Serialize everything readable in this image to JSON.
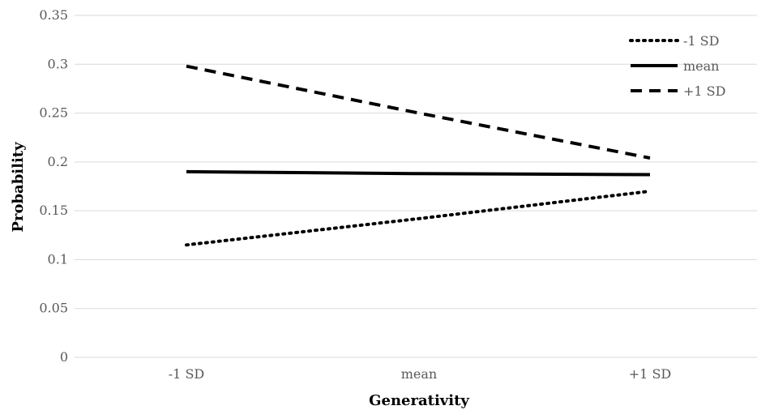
{
  "chart_data": {
    "type": "line",
    "title": "",
    "xlabel": "Generativity",
    "ylabel": "Probability",
    "categories": [
      "-1 SD",
      "mean",
      "+1 SD"
    ],
    "ylim": [
      0,
      0.35
    ],
    "yticks": [
      0,
      0.05,
      0.1,
      0.15,
      0.2,
      0.25,
      0.3,
      0.35
    ],
    "ytick_labels": [
      "0",
      "0.05",
      "0.1",
      "0.15",
      "0.2",
      "0.25",
      "0.3",
      "0.35"
    ],
    "grid": true,
    "legend_position": "top-right",
    "series": [
      {
        "name": "-1 SD",
        "values": [
          0.115,
          0.142,
          0.17
        ],
        "line_style": "dotted",
        "color": "#000000"
      },
      {
        "name": "mean",
        "values": [
          0.19,
          0.188,
          0.187
        ],
        "line_style": "solid",
        "color": "#000000"
      },
      {
        "name": "+1 SD",
        "values": [
          0.298,
          0.25,
          0.204
        ],
        "line_style": "dashed",
        "color": "#000000"
      }
    ]
  }
}
